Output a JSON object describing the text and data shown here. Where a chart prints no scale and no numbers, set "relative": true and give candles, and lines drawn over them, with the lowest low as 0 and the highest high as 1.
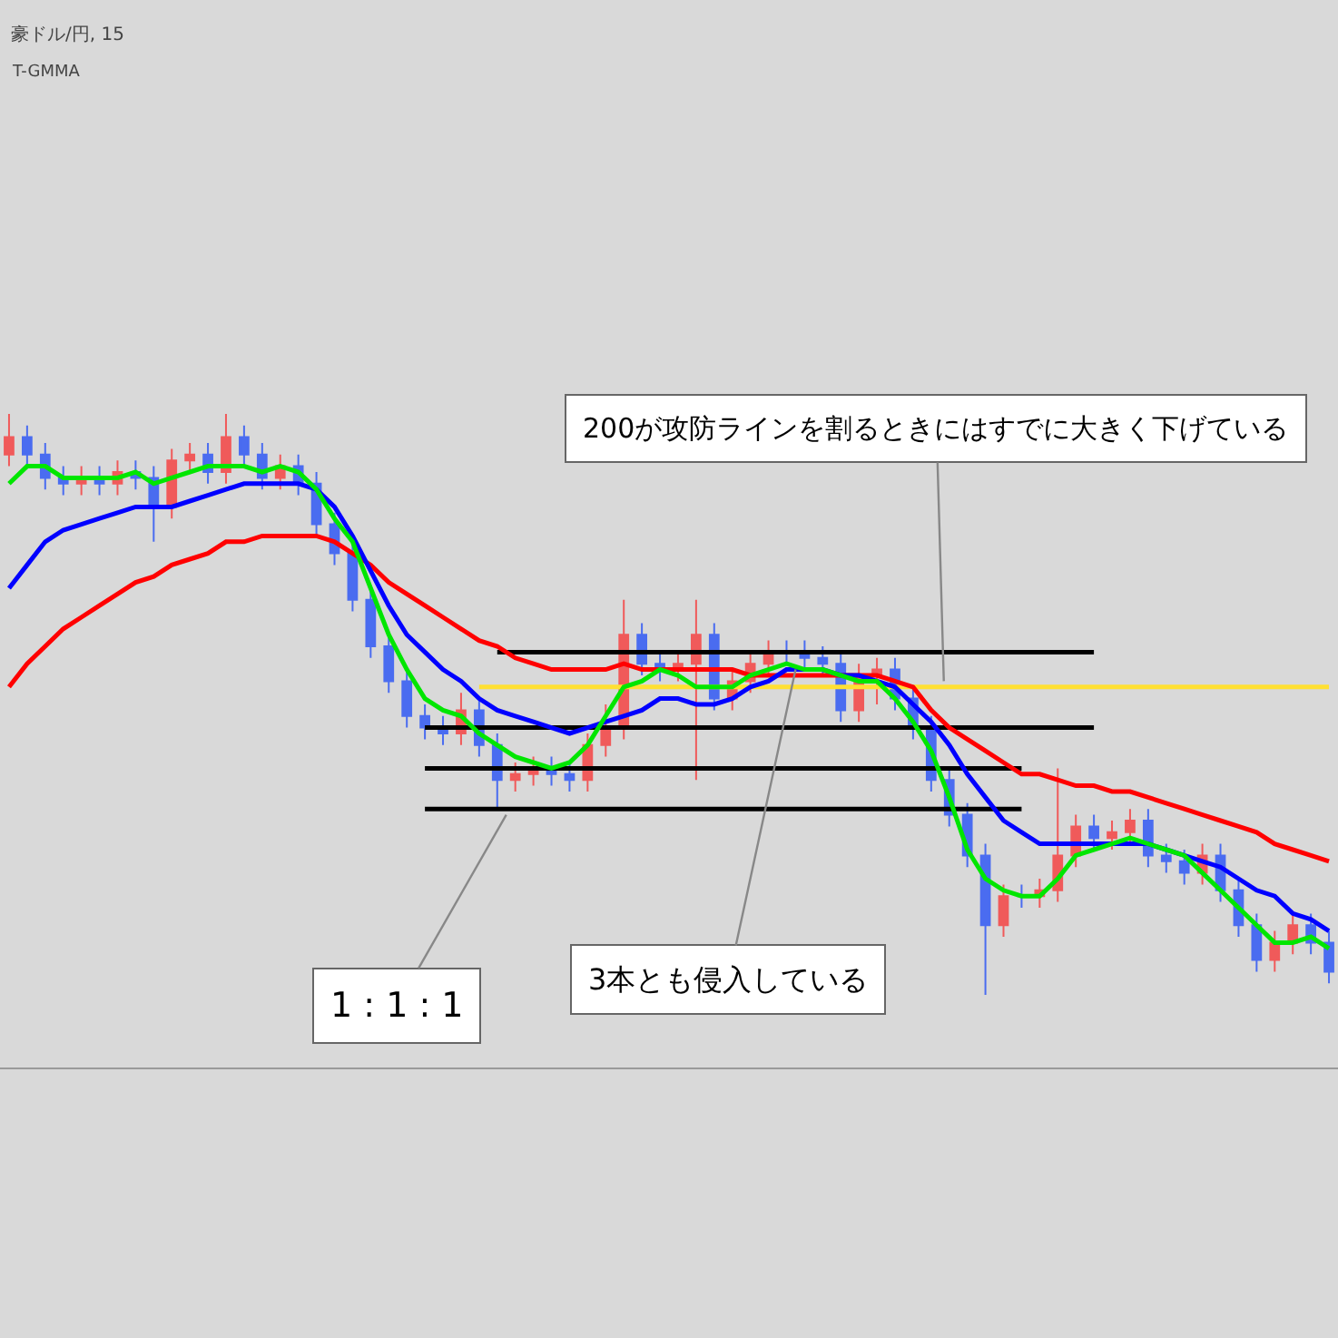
{
  "chart_data": {
    "type": "candlestick",
    "title": "豪ドル/円, 15",
    "subtitle": "T-GMMA",
    "relative": true,
    "categories": [
      null,
      null,
      null,
      null,
      null,
      null,
      null,
      null,
      null,
      null,
      null,
      null,
      null,
      null,
      null,
      null,
      null,
      null,
      null,
      null,
      null,
      null,
      null,
      null,
      null,
      null,
      null,
      null,
      null,
      null,
      null,
      null,
      null,
      null,
      null,
      null,
      null,
      null,
      null,
      null,
      null,
      null,
      null,
      null,
      null,
      null,
      null,
      null,
      null,
      null,
      null,
      null,
      null,
      null,
      null,
      null,
      null,
      null,
      null,
      null,
      null,
      null,
      null,
      null,
      null,
      null,
      null,
      null,
      null,
      null,
      null,
      null,
      null,
      null
    ],
    "colors": [
      "#f05a5a",
      "#4a6cf0",
      "#4a6cf0",
      "#4a6cf0",
      "#f05a5a",
      "#4a6cf0",
      "#f05a5a",
      "#4a6cf0",
      "#4a6cf0",
      "#f05a5a",
      "#f05a5a",
      "#4a6cf0",
      "#f05a5a",
      "#4a6cf0",
      "#4a6cf0",
      "#f05a5a",
      "#4a6cf0",
      "#4a6cf0",
      "#4a6cf0",
      "#4a6cf0",
      "#4a6cf0",
      "#4a6cf0",
      "#4a6cf0",
      "#4a6cf0",
      "#4a6cf0",
      "#f05a5a",
      "#4a6cf0",
      "#4a6cf0",
      "#f05a5a",
      "#f05a5a",
      "#4a6cf0",
      "#4a6cf0",
      "#f05a5a",
      "#f05a5a",
      "#f05a5a",
      "#4a6cf0",
      "#4a6cf0",
      "#f05a5a",
      "#f05a5a",
      "#4a6cf0",
      "#f05a5a",
      "#f05a5a",
      "#f05a5a",
      "#4a6cf0",
      "#4a6cf0",
      "#4a6cf0",
      "#4a6cf0",
      "#f05a5a",
      "#f05a5a",
      "#4a6cf0",
      "#4a6cf0",
      "#4a6cf0",
      "#4a6cf0",
      "#4a6cf0",
      "#4a6cf0",
      "#f05a5a",
      "#4a6cf0",
      "#f05a5a",
      "#f05a5a",
      "#f05a5a",
      "#4a6cf0",
      "#f05a5a",
      "#f05a5a",
      "#4a6cf0",
      "#4a6cf0",
      "#4a6cf0",
      "#f05a5a",
      "#4a6cf0",
      "#4a6cf0",
      "#4a6cf0",
      "#f05a5a",
      "#f05a5a",
      "#4a6cf0",
      "#4a6cf0"
    ],
    "ohlc": [
      [
        0.93,
        1.0,
        0.91,
        0.96
      ],
      [
        0.96,
        0.98,
        0.91,
        0.93
      ],
      [
        0.93,
        0.95,
        0.87,
        0.89
      ],
      [
        0.89,
        0.91,
        0.86,
        0.88
      ],
      [
        0.88,
        0.91,
        0.86,
        0.89
      ],
      [
        0.89,
        0.91,
        0.86,
        0.88
      ],
      [
        0.88,
        0.92,
        0.86,
        0.9
      ],
      [
        0.9,
        0.92,
        0.87,
        0.89
      ],
      [
        0.89,
        0.91,
        0.78,
        0.84
      ],
      [
        0.84,
        0.94,
        0.82,
        0.92
      ],
      [
        0.92,
        0.95,
        0.9,
        0.93
      ],
      [
        0.93,
        0.95,
        0.88,
        0.9
      ],
      [
        0.9,
        1.0,
        0.88,
        0.96
      ],
      [
        0.96,
        0.98,
        0.91,
        0.93
      ],
      [
        0.93,
        0.95,
        0.87,
        0.89
      ],
      [
        0.89,
        0.93,
        0.87,
        0.91
      ],
      [
        0.91,
        0.93,
        0.86,
        0.88
      ],
      [
        0.88,
        0.9,
        0.79,
        0.81
      ],
      [
        0.81,
        0.83,
        0.74,
        0.76
      ],
      [
        0.76,
        0.78,
        0.66,
        0.68
      ],
      [
        0.68,
        0.7,
        0.58,
        0.6
      ],
      [
        0.6,
        0.62,
        0.52,
        0.54
      ],
      [
        0.54,
        0.56,
        0.46,
        0.48
      ],
      [
        0.48,
        0.5,
        0.44,
        0.46
      ],
      [
        0.46,
        0.48,
        0.43,
        0.45
      ],
      [
        0.45,
        0.52,
        0.43,
        0.49
      ],
      [
        0.49,
        0.51,
        0.41,
        0.43
      ],
      [
        0.43,
        0.45,
        0.32,
        0.37
      ],
      [
        0.37,
        0.4,
        0.35,
        0.38
      ],
      [
        0.38,
        0.41,
        0.36,
        0.39
      ],
      [
        0.39,
        0.41,
        0.36,
        0.38
      ],
      [
        0.38,
        0.4,
        0.35,
        0.37
      ],
      [
        0.37,
        0.45,
        0.35,
        0.43
      ],
      [
        0.43,
        0.5,
        0.41,
        0.46
      ],
      [
        0.46,
        0.68,
        0.44,
        0.62
      ],
      [
        0.62,
        0.64,
        0.55,
        0.57
      ],
      [
        0.57,
        0.59,
        0.54,
        0.56
      ],
      [
        0.56,
        0.59,
        0.54,
        0.57
      ],
      [
        0.57,
        0.68,
        0.37,
        0.62
      ],
      [
        0.62,
        0.64,
        0.49,
        0.51
      ],
      [
        0.51,
        0.56,
        0.49,
        0.54
      ],
      [
        0.54,
        0.59,
        0.52,
        0.57
      ],
      [
        0.57,
        0.61,
        0.55,
        0.59
      ],
      [
        0.59,
        0.61,
        0.57,
        0.59
      ],
      [
        0.59,
        0.61,
        0.56,
        0.58
      ],
      [
        0.58,
        0.6,
        0.55,
        0.57
      ],
      [
        0.57,
        0.59,
        0.47,
        0.49
      ],
      [
        0.49,
        0.57,
        0.47,
        0.55
      ],
      [
        0.55,
        0.58,
        0.5,
        0.56
      ],
      [
        0.56,
        0.58,
        0.49,
        0.51
      ],
      [
        0.51,
        0.53,
        0.44,
        0.46
      ],
      [
        0.46,
        0.48,
        0.35,
        0.37
      ],
      [
        0.37,
        0.39,
        0.29,
        0.31
      ],
      [
        0.31,
        0.33,
        0.22,
        0.24
      ],
      [
        0.24,
        0.26,
        0.0,
        0.12
      ],
      [
        0.12,
        0.19,
        0.1,
        0.17
      ],
      [
        0.17,
        0.19,
        0.15,
        0.17
      ],
      [
        0.17,
        0.2,
        0.15,
        0.18
      ],
      [
        0.18,
        0.39,
        0.16,
        0.24
      ],
      [
        0.24,
        0.31,
        0.22,
        0.29
      ],
      [
        0.29,
        0.31,
        0.25,
        0.27
      ],
      [
        0.27,
        0.3,
        0.25,
        0.28
      ],
      [
        0.28,
        0.32,
        0.26,
        0.3
      ],
      [
        0.3,
        0.32,
        0.22,
        0.24
      ],
      [
        0.24,
        0.26,
        0.21,
        0.23
      ],
      [
        0.23,
        0.25,
        0.19,
        0.21
      ],
      [
        0.21,
        0.26,
        0.19,
        0.24
      ],
      [
        0.24,
        0.26,
        0.16,
        0.18
      ],
      [
        0.18,
        0.2,
        0.1,
        0.12
      ],
      [
        0.12,
        0.14,
        0.04,
        0.06
      ],
      [
        0.06,
        0.11,
        0.04,
        0.09
      ],
      [
        0.09,
        0.14,
        0.07,
        0.12
      ],
      [
        0.12,
        0.14,
        0.07,
        0.09
      ],
      [
        0.09,
        0.11,
        0.02,
        0.04
      ]
    ],
    "series": [
      {
        "type": "line",
        "color": "#00e600",
        "values": [
          0.88,
          0.91,
          0.91,
          0.89,
          0.89,
          0.89,
          0.89,
          0.9,
          0.88,
          0.89,
          0.9,
          0.91,
          0.91,
          0.91,
          0.9,
          0.91,
          0.9,
          0.87,
          0.82,
          0.78,
          0.7,
          0.62,
          0.56,
          0.51,
          0.49,
          0.48,
          0.45,
          0.43,
          0.41,
          0.4,
          0.39,
          0.4,
          0.43,
          0.48,
          0.53,
          0.54,
          0.56,
          0.55,
          0.53,
          0.53,
          0.53,
          0.55,
          0.56,
          0.57,
          0.56,
          0.56,
          0.55,
          0.54,
          0.54,
          0.51,
          0.47,
          0.42,
          0.34,
          0.25,
          0.2,
          0.18,
          0.17,
          0.17,
          0.2,
          0.24,
          0.25,
          0.26,
          0.27,
          0.26,
          0.25,
          0.24,
          0.21,
          0.18,
          0.15,
          0.12,
          0.09,
          0.09,
          0.1,
          0.08
        ]
      },
      {
        "type": "line",
        "color": "#0000ff",
        "values": [
          0.7,
          0.74,
          0.78,
          0.8,
          0.81,
          0.82,
          0.83,
          0.84,
          0.84,
          0.84,
          0.85,
          0.86,
          0.87,
          0.88,
          0.88,
          0.88,
          0.88,
          0.87,
          0.84,
          0.79,
          0.73,
          0.67,
          0.62,
          0.59,
          0.56,
          0.54,
          0.51,
          0.49,
          0.48,
          0.47,
          0.46,
          0.45,
          0.46,
          0.47,
          0.48,
          0.49,
          0.51,
          0.51,
          0.5,
          0.5,
          0.51,
          0.53,
          0.54,
          0.56,
          0.56,
          0.56,
          0.55,
          0.55,
          0.54,
          0.53,
          0.5,
          0.47,
          0.43,
          0.38,
          0.34,
          0.3,
          0.28,
          0.26,
          0.26,
          0.26,
          0.26,
          0.26,
          0.26,
          0.26,
          0.25,
          0.24,
          0.23,
          0.22,
          0.2,
          0.18,
          0.17,
          0.14,
          0.13,
          0.11
        ]
      },
      {
        "type": "line",
        "color": "#ff0000",
        "values": [
          0.53,
          0.57,
          0.6,
          0.63,
          0.65,
          0.67,
          0.69,
          0.71,
          0.72,
          0.74,
          0.75,
          0.76,
          0.78,
          0.78,
          0.79,
          0.79,
          0.79,
          0.79,
          0.78,
          0.76,
          0.74,
          0.71,
          0.69,
          0.67,
          0.65,
          0.63,
          0.61,
          0.6,
          0.58,
          0.57,
          0.56,
          0.56,
          0.56,
          0.56,
          0.57,
          0.56,
          0.56,
          0.56,
          0.56,
          0.56,
          0.56,
          0.55,
          0.55,
          0.55,
          0.55,
          0.55,
          0.55,
          0.55,
          0.55,
          0.54,
          0.53,
          0.49,
          0.46,
          0.44,
          0.42,
          0.4,
          0.38,
          0.38,
          0.37,
          0.36,
          0.36,
          0.35,
          0.35,
          0.34,
          0.33,
          0.32,
          0.31,
          0.3,
          0.29,
          0.28,
          0.26,
          0.25,
          0.24,
          0.23
        ]
      },
      {
        "type": "line",
        "color": "#000000",
        "values": [
          null,
          null,
          null,
          null,
          null,
          null,
          null,
          null,
          null,
          null,
          null,
          null,
          null,
          null,
          null,
          null,
          null,
          null,
          null,
          null,
          null,
          null,
          null,
          null,
          null,
          null,
          null,
          0.59,
          0.59,
          0.59,
          0.59,
          0.59,
          0.59,
          0.59,
          0.59,
          0.59,
          0.59,
          0.59,
          0.59,
          0.59,
          0.59,
          0.59,
          0.59,
          0.59,
          0.59,
          0.59,
          0.59,
          0.59,
          0.59,
          0.59,
          0.59,
          0.59,
          0.59,
          0.59,
          0.59,
          0.59,
          0.59,
          0.59,
          0.59,
          0.59,
          0.59,
          null,
          null,
          null,
          null,
          null,
          null,
          null,
          null,
          null,
          null,
          null,
          null,
          null
        ]
      },
      {
        "type": "line",
        "color": "#000000",
        "values": [
          null,
          null,
          null,
          null,
          null,
          null,
          null,
          null,
          null,
          null,
          null,
          null,
          null,
          null,
          null,
          null,
          null,
          null,
          null,
          null,
          null,
          null,
          null,
          0.46,
          0.46,
          0.46,
          0.46,
          0.46,
          0.46,
          0.46,
          0.46,
          0.46,
          0.46,
          0.46,
          0.46,
          0.46,
          0.46,
          0.46,
          0.46,
          0.46,
          0.46,
          0.46,
          0.46,
          0.46,
          0.46,
          0.46,
          0.46,
          0.46,
          0.46,
          0.46,
          0.46,
          0.46,
          0.46,
          0.46,
          0.46,
          0.46,
          0.46,
          0.46,
          0.46,
          0.46,
          0.46,
          null,
          null,
          null,
          null,
          null,
          null,
          null,
          null,
          null,
          null,
          null,
          null,
          null
        ]
      },
      {
        "type": "line",
        "color": "#000000",
        "values": [
          null,
          null,
          null,
          null,
          null,
          null,
          null,
          null,
          null,
          null,
          null,
          null,
          null,
          null,
          null,
          null,
          null,
          null,
          null,
          null,
          null,
          null,
          null,
          0.39,
          0.39,
          0.39,
          0.39,
          0.39,
          0.39,
          0.39,
          0.39,
          0.39,
          0.39,
          0.39,
          0.39,
          0.39,
          0.39,
          0.39,
          0.39,
          0.39,
          0.39,
          0.39,
          0.39,
          0.39,
          0.39,
          0.39,
          0.39,
          0.39,
          0.39,
          0.39,
          0.39,
          0.39,
          0.39,
          0.39,
          0.39,
          0.39,
          0.39,
          null,
          null,
          null,
          null,
          null,
          null,
          null,
          null,
          null,
          null,
          null,
          null,
          null,
          null,
          null,
          null,
          null
        ]
      },
      {
        "type": "line",
        "color": "#000000",
        "values": [
          null,
          null,
          null,
          null,
          null,
          null,
          null,
          null,
          null,
          null,
          null,
          null,
          null,
          null,
          null,
          null,
          null,
          null,
          null,
          null,
          null,
          null,
          null,
          0.32,
          0.32,
          0.32,
          0.32,
          0.32,
          0.32,
          0.32,
          0.32,
          0.32,
          0.32,
          0.32,
          0.32,
          0.32,
          0.32,
          0.32,
          0.32,
          0.32,
          0.32,
          0.32,
          0.32,
          0.32,
          0.32,
          0.32,
          0.32,
          0.32,
          0.32,
          0.32,
          0.32,
          0.32,
          0.32,
          0.32,
          0.32,
          0.32,
          0.32,
          null,
          null,
          null,
          null,
          null,
          null,
          null,
          null,
          null,
          null,
          null,
          null,
          null,
          null,
          null,
          null,
          null
        ]
      },
      {
        "type": "line",
        "color": "#ffe033",
        "values": [
          null,
          null,
          null,
          null,
          null,
          null,
          null,
          null,
          null,
          null,
          null,
          null,
          null,
          null,
          null,
          null,
          null,
          null,
          null,
          null,
          null,
          null,
          null,
          null,
          null,
          null,
          0.53,
          0.53,
          0.53,
          0.53,
          0.53,
          0.53,
          0.53,
          0.53,
          0.53,
          0.53,
          0.53,
          0.53,
          0.53,
          0.53,
          0.53,
          0.53,
          0.53,
          0.53,
          0.53,
          0.53,
          0.53,
          0.53,
          0.53,
          0.53,
          0.53,
          0.53,
          0.53,
          0.53,
          0.53,
          0.53,
          0.53,
          0.53,
          0.53,
          0.53,
          0.53,
          0.53,
          0.53,
          0.53,
          0.53,
          0.53,
          0.53,
          0.53,
          0.53,
          0.53,
          0.53,
          0.53,
          0.53,
          0.53
        ]
      }
    ],
    "annotations": [
      "200が攻防ラインを割るときにはすでに大きく下げている",
      "3本とも侵入している",
      "1 : 1 : 1"
    ]
  }
}
